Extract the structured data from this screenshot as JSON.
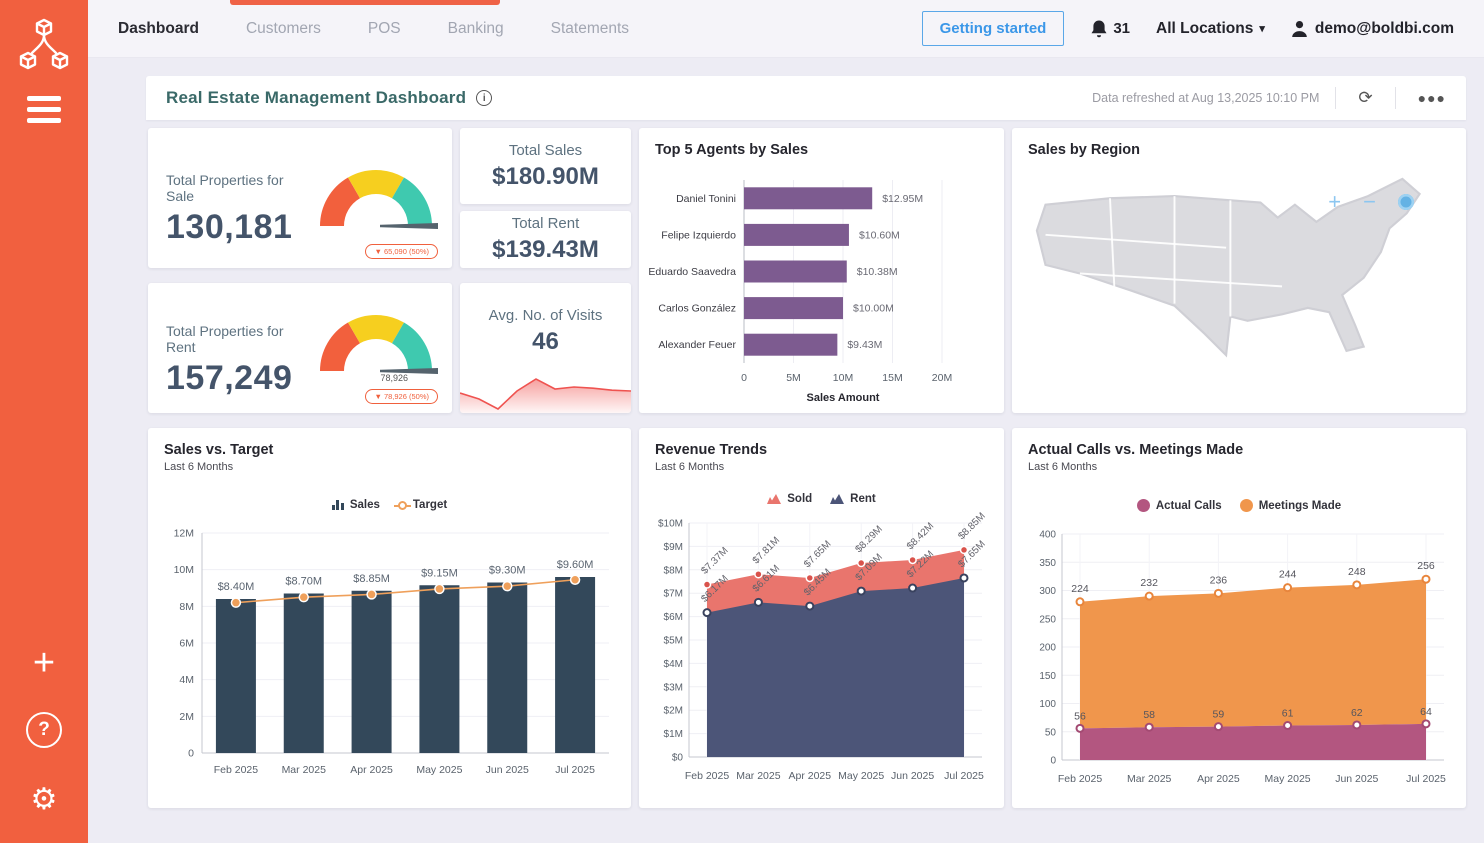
{
  "nav": {
    "items": [
      {
        "label": "Dashboard"
      },
      {
        "label": "Customers"
      },
      {
        "label": "POS"
      },
      {
        "label": "Banking"
      },
      {
        "label": "Statements"
      }
    ],
    "getting_started_label": "Getting started",
    "notification_count": "31",
    "location_label": "All Locations",
    "user_email": "demo@boldbi.com"
  },
  "header": {
    "title": "Real Estate Management Dashboard",
    "refreshed_text": "Data refreshed at Aug 13,2025 10:10 PM"
  },
  "kpis": {
    "properties_sale": {
      "label": "Total Properties for Sale",
      "value": "130,181",
      "badge": "▼ 65,090 (50%)"
    },
    "properties_rent": {
      "label": "Total Properties for Rent",
      "value": "157,249",
      "needle_label": "78,926",
      "badge": "▼ 78,926 (50%)"
    },
    "total_sales": {
      "label": "Total Sales",
      "value": "$180.90M"
    },
    "total_rent": {
      "label": "Total Rent",
      "value": "$139.43M"
    },
    "avg_visits": {
      "label": "Avg. No. of Visits",
      "value": "46",
      "sparkline": [
        45,
        30,
        5,
        50,
        80,
        55,
        60,
        57,
        52,
        50
      ]
    },
    "gauge_colors": [
      "#f2603d",
      "#f6cf1f",
      "#3fc9af"
    ],
    "spark_color": "#ef5350"
  },
  "region": {
    "title": "Sales by Region"
  },
  "chart_data": [
    {
      "id": "agents",
      "type": "bar",
      "orientation": "horizontal",
      "title": "Top 5 Agents by Sales",
      "categories": [
        "Daniel Tonini",
        "Felipe Izquierdo",
        "Eduardo Saavedra",
        "Carlos González",
        "Alexander Feuer"
      ],
      "values": [
        12.95,
        10.6,
        10.38,
        10.0,
        9.43
      ],
      "labels": [
        "$12.95M",
        "$10.60M",
        "$10.38M",
        "$10.00M",
        "$9.43M"
      ],
      "xlabel": "Sales Amount",
      "xlim": [
        0,
        20
      ],
      "xticks": [
        "0",
        "5M",
        "10M",
        "15M",
        "20M"
      ],
      "bar_color": "#7d5b90"
    },
    {
      "id": "sales_target",
      "type": "bar+line",
      "title": "Sales vs. Target",
      "subtitle": "Last 6 Months",
      "categories": [
        "Feb 2025",
        "Mar 2025",
        "Apr 2025",
        "May 2025",
        "Jun 2025",
        "Jul 2025"
      ],
      "series": [
        {
          "name": "Sales",
          "type": "bar",
          "values": [
            8.4,
            8.7,
            8.85,
            9.15,
            9.3,
            9.6
          ],
          "labels": [
            "$8.40M",
            "$8.70M",
            "$8.85M",
            "$9.15M",
            "$9.30M",
            "$9.60M"
          ],
          "color": "#33485a"
        },
        {
          "name": "Target",
          "type": "line",
          "values": [
            8.2,
            8.5,
            8.65,
            8.95,
            9.1,
            9.45
          ],
          "color": "#efa05b"
        }
      ],
      "ylim": [
        0,
        12
      ],
      "ytick_step": 2
    },
    {
      "id": "revenue",
      "type": "area",
      "stacked": false,
      "title": "Revenue Trends",
      "subtitle": "Last 6 Months",
      "categories": [
        "Feb 2025",
        "Mar 2025",
        "Apr 2025",
        "May 2025",
        "Jun 2025",
        "Jul 2025"
      ],
      "series": [
        {
          "name": "Sold",
          "values": [
            7.37,
            7.81,
            7.65,
            8.29,
            8.42,
            8.85
          ],
          "labels": [
            "$7.37M",
            "$7.81M",
            "$7.65M",
            "$8.29M",
            "$8.42M",
            "$8.85M"
          ],
          "color": "#e9756d",
          "line": "#d9534c"
        },
        {
          "name": "Rent",
          "values": [
            6.17,
            6.61,
            6.45,
            7.09,
            7.22,
            7.65
          ],
          "labels": [
            "$6.17M",
            "$6.61M",
            "$6.45M",
            "$7.09M",
            "$7.22M",
            "$7.65M"
          ],
          "color": "#4c5578",
          "line": "#39425e"
        }
      ],
      "ylim": [
        0,
        10
      ],
      "ytick_step": 1
    },
    {
      "id": "calls",
      "type": "area",
      "stacked": true,
      "title": "Actual Calls vs. Meetings Made",
      "subtitle": "Last 6 Months",
      "categories": [
        "Feb 2025",
        "Mar 2025",
        "Apr 2025",
        "May 2025",
        "Jun 2025",
        "Jul 2025"
      ],
      "series": [
        {
          "name": "Actual Calls",
          "values": [
            56,
            58,
            59,
            61,
            62,
            64
          ],
          "color": "#b35680",
          "line": "#a34a72"
        },
        {
          "name": "Meetings Made",
          "values": [
            224,
            232,
            236,
            244,
            248,
            256
          ],
          "color": "#f0964c",
          "line": "#e8853c"
        }
      ],
      "ylim": [
        0,
        400
      ],
      "ytick_step": 50
    }
  ]
}
